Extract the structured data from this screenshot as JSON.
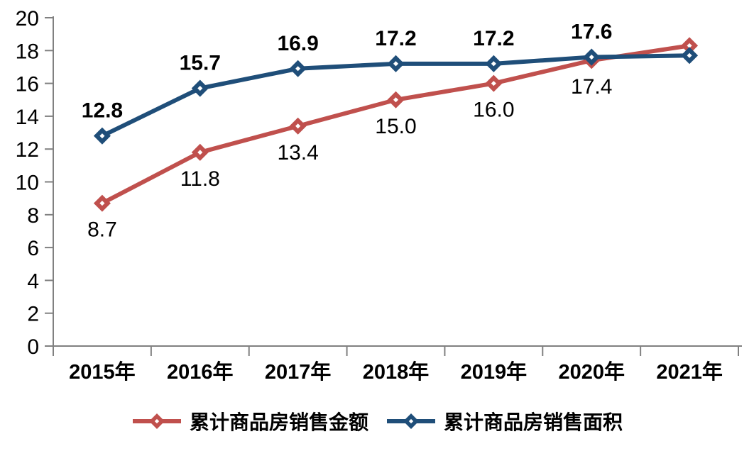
{
  "chart_data": {
    "type": "line",
    "title": "",
    "xlabel": "",
    "ylabel": "",
    "categories": [
      "2015年",
      "2016年",
      "2017年",
      "2018年",
      "2019年",
      "2020年",
      "2021年"
    ],
    "series": [
      {
        "name": "累计商品房销售金额",
        "color": "#c0504d",
        "marker": "diamond",
        "values": [
          8.7,
          11.8,
          13.4,
          15.0,
          16.0,
          17.4,
          18.3
        ],
        "point_labels": [
          "8.7",
          "11.8",
          "13.4",
          "15.0",
          "16.0",
          "17.4",
          ""
        ],
        "label_position": "below",
        "label_weight": "normal"
      },
      {
        "name": "累计商品房销售面积",
        "color": "#1f4e79",
        "marker": "diamond",
        "values": [
          12.8,
          15.7,
          16.9,
          17.2,
          17.2,
          17.6,
          17.7
        ],
        "point_labels": [
          "12.8",
          "15.7",
          "16.9",
          "17.2",
          "17.2",
          "17.6",
          ""
        ],
        "label_position": "above",
        "label_weight": "bold"
      }
    ],
    "ylim": [
      0,
      20
    ],
    "y_ticks": [
      0,
      2,
      4,
      6,
      8,
      10,
      12,
      14,
      16,
      18,
      20
    ],
    "grid": false,
    "legend_position": "bottom",
    "axis_color": "#808080",
    "text_color": "#000000"
  }
}
